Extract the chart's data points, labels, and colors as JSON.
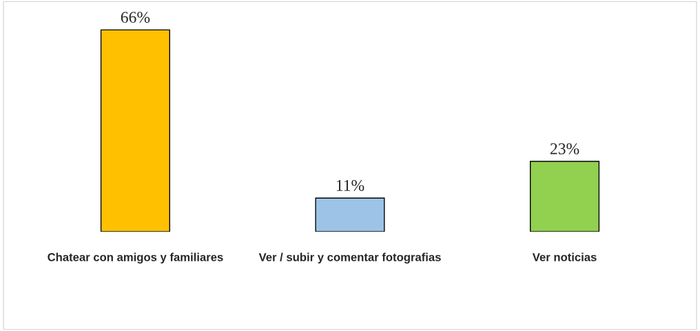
{
  "chart_data": {
    "type": "bar",
    "categories": [
      "Chatear con amigos y familiares",
      "Ver / subir y comentar fotografias",
      "Ver noticias"
    ],
    "values": [
      66,
      11,
      23
    ],
    "colors": [
      "#ffc000",
      "#9dc3e6",
      "#92d050"
    ],
    "value_labels": [
      "66%",
      "11%",
      "23%"
    ],
    "tick_labels": "x",
    "grid": false,
    "legend": false
  }
}
